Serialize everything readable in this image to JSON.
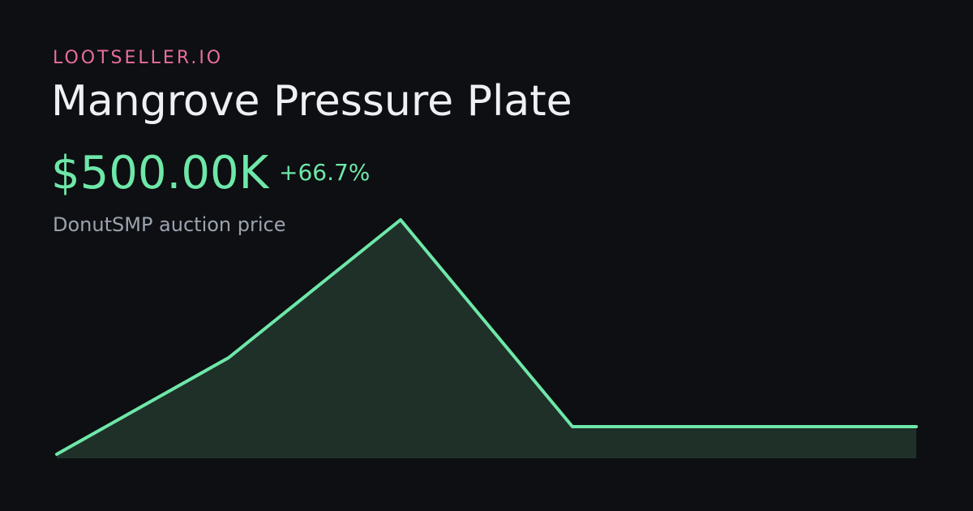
{
  "chart_data": {
    "type": "area",
    "brand": "LOOTSELLER.IO",
    "title": "Mangrove Pressure Plate",
    "price": "$500.00K",
    "change": "+66.7%",
    "subtitle": "DonutSMP auction price",
    "values": [
      300000,
      1000000,
      2000000,
      500000,
      500000,
      500000
    ],
    "color": "#6ee7a8",
    "fill": "#1f3029"
  }
}
